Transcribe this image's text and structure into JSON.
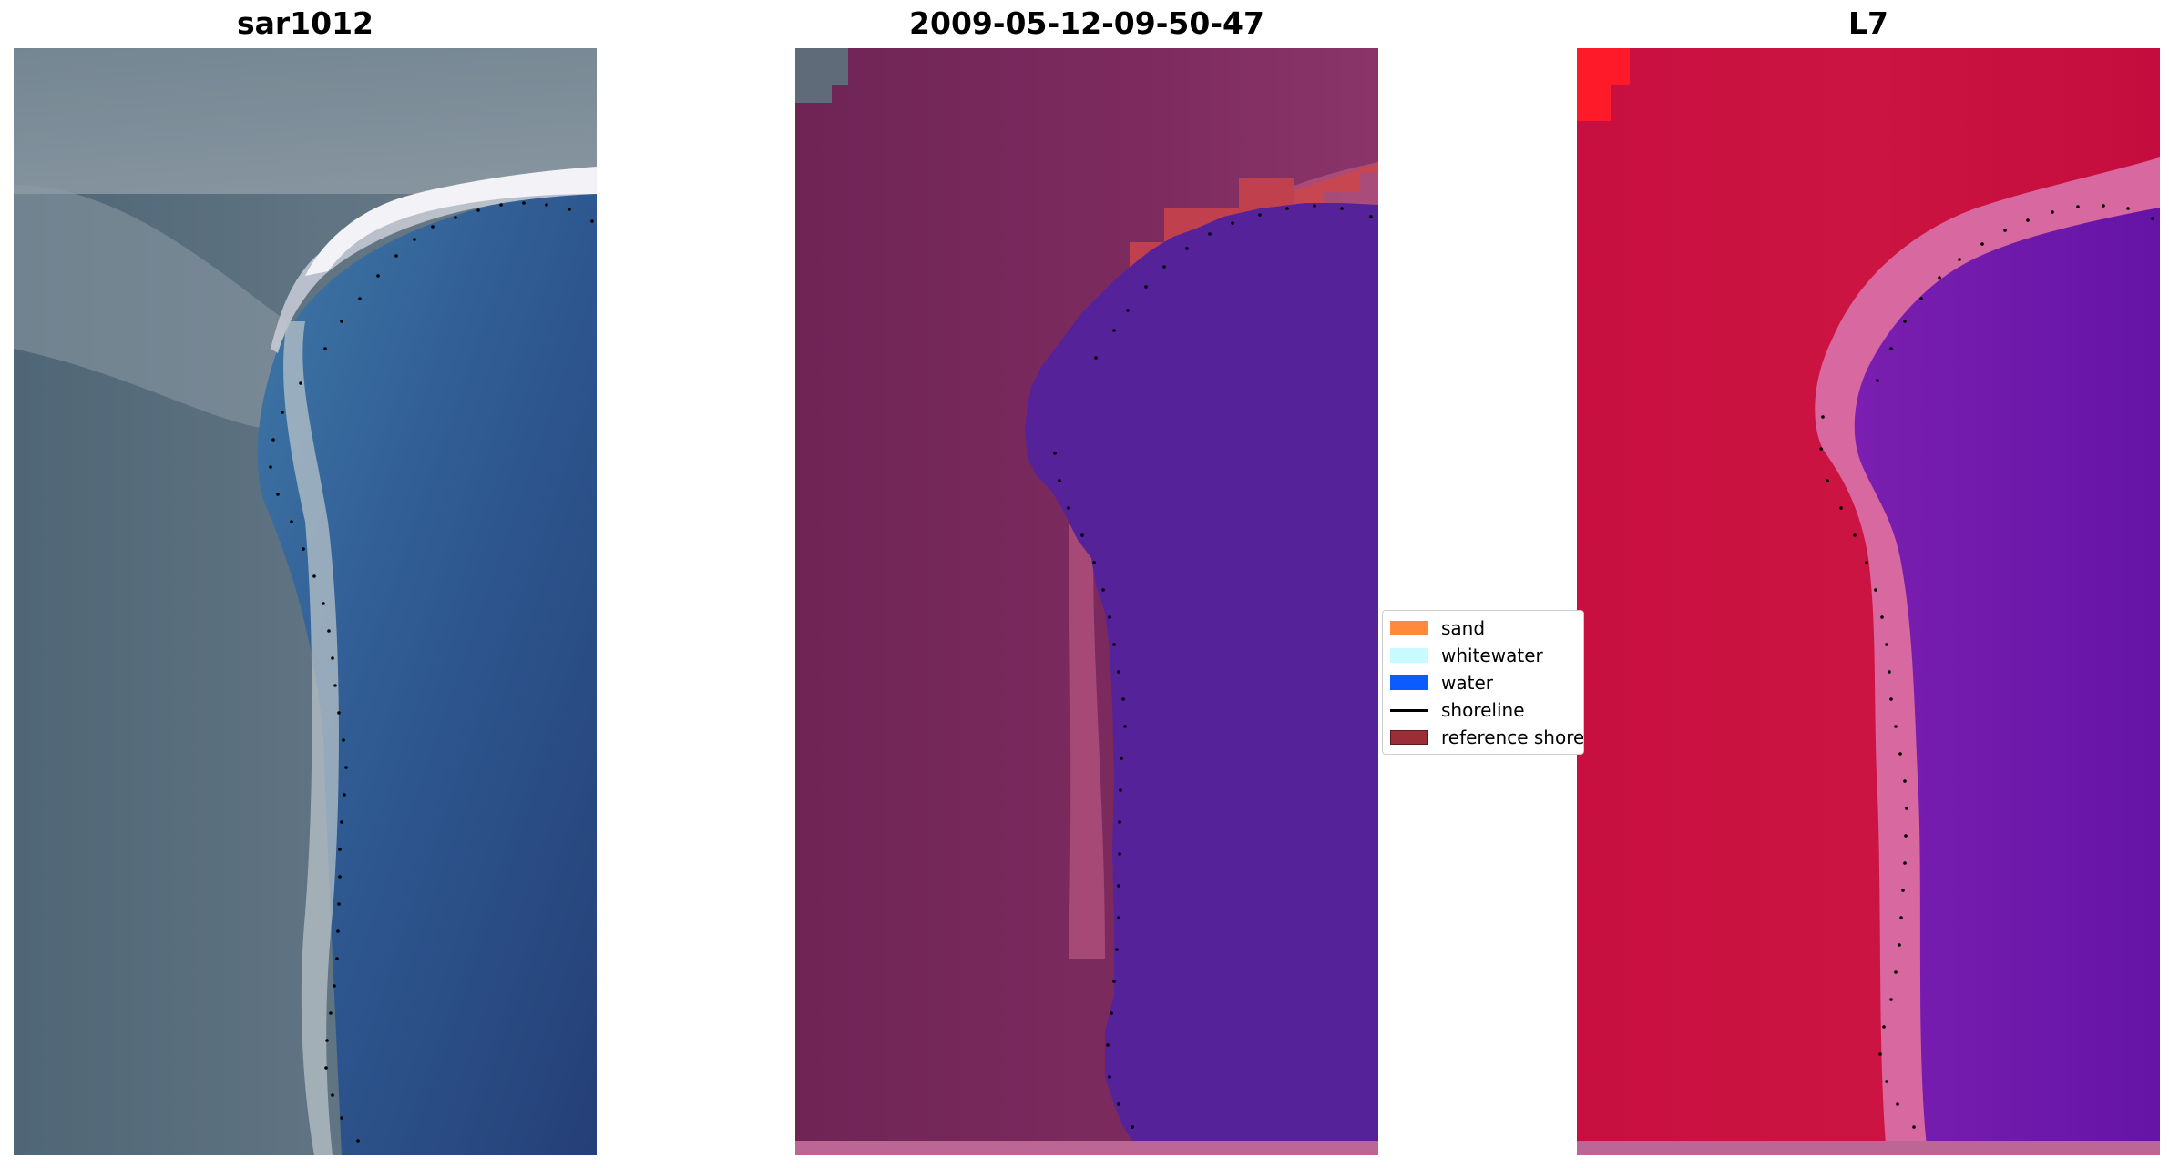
{
  "panels": [
    {
      "title": "sar1012",
      "kind": "rgb"
    },
    {
      "title": "2009-05-12-09-50-47",
      "kind": "classified"
    },
    {
      "title": "L7",
      "kind": "index"
    }
  ],
  "legend": {
    "items": [
      {
        "label": "sand",
        "color": "#ff8a3d",
        "type": "patch"
      },
      {
        "label": "whitewater",
        "color": "#c8fbff",
        "type": "patch"
      },
      {
        "label": "water",
        "color": "#0a5cff",
        "type": "patch"
      },
      {
        "label": "shoreline",
        "color": "#000000",
        "type": "line"
      },
      {
        "label": "reference shoreline",
        "color": "#9b2d36",
        "type": "patch"
      }
    ]
  },
  "colors": {
    "rgb_land": "#566a7a",
    "rgb_sea": "#2d4f82",
    "rgb_surf": "#e6eaf0",
    "class_land": "#7b2a5c",
    "class_water": "#56229a",
    "class_reference": "#c0404e",
    "index_land": "#c8103e",
    "index_water": "#6a18a8",
    "index_edge": "#d868a0",
    "shoreline_dots": "#000000"
  }
}
